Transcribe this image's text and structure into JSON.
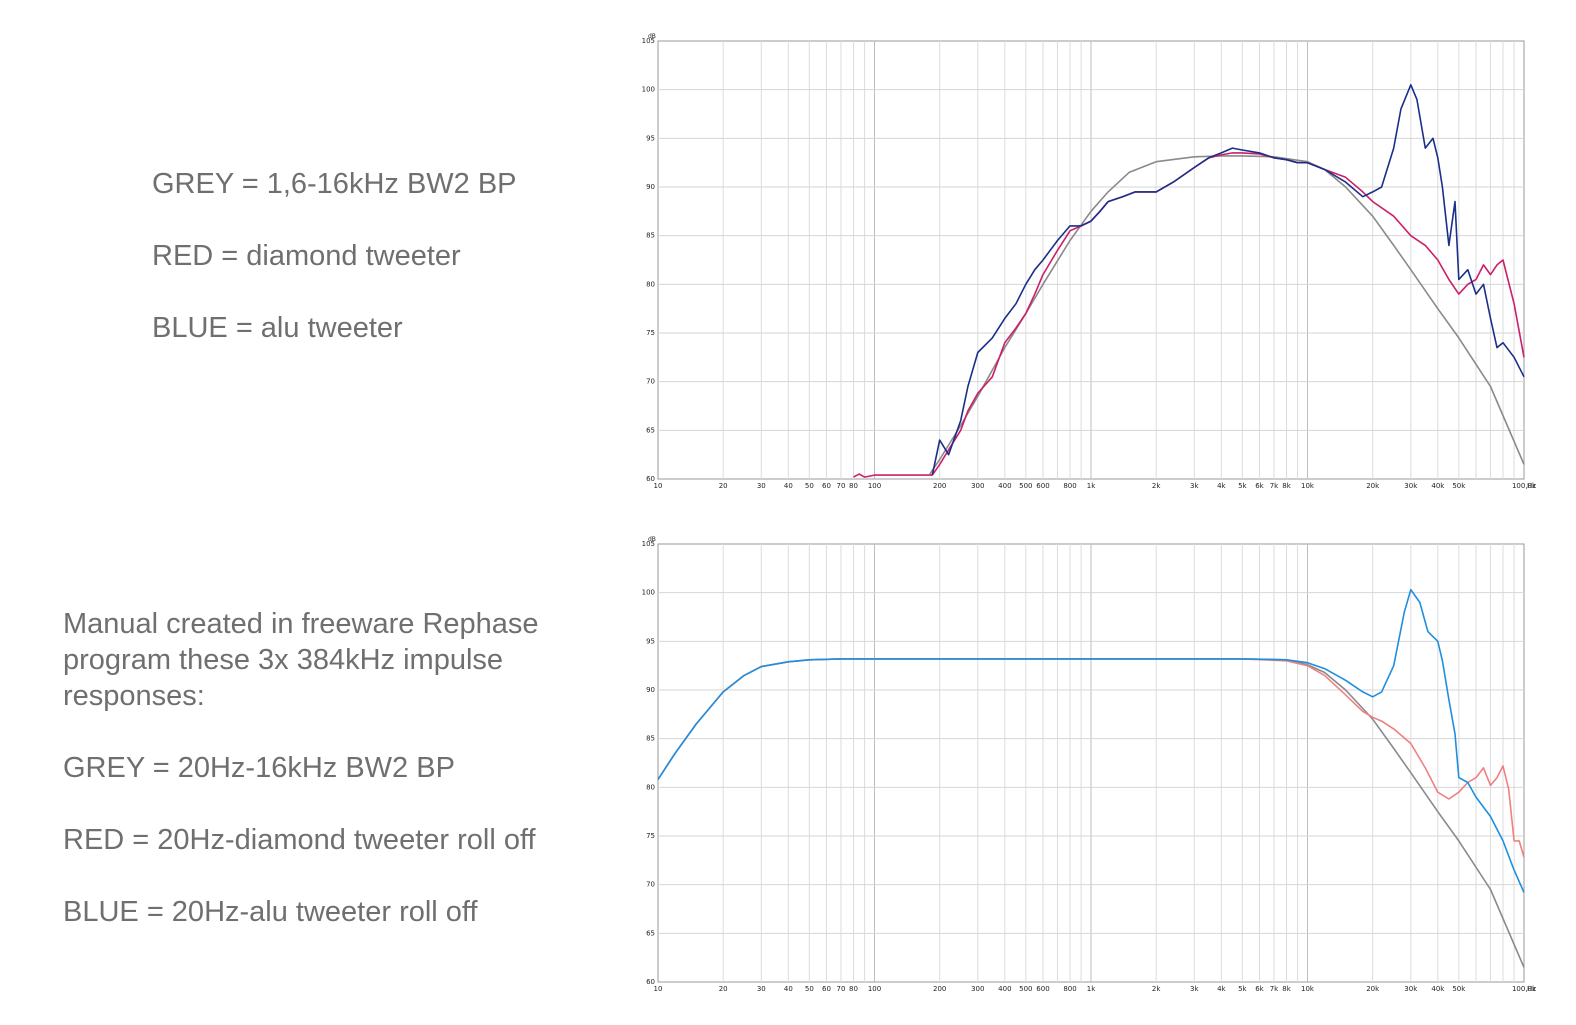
{
  "legend_top": {
    "grey": "GREY = 1,6-16kHz BW2 BP",
    "red": "RED = diamond tweeter",
    "blue": "BLUE = alu tweeter"
  },
  "legend_bottom": {
    "intro": "Manual created in freeware Rephase program these 3x 384kHz impulse responses:",
    "grey": "GREY = 20Hz-16kHz BW2 BP",
    "red": "RED = 20Hz-diamond tweeter roll off",
    "blue": "BLUE = 20Hz-alu tweeter roll off"
  },
  "chart_data": [
    {
      "type": "line",
      "x_scale": "log",
      "xlim": [
        10,
        100000
      ],
      "ylim": [
        60,
        105
      ],
      "y_unit": "dB",
      "x_unit": "Hz",
      "grid": true,
      "x_tick_labels": [
        "10",
        "20",
        "30",
        "40",
        "50",
        "60",
        "70",
        "80",
        "100",
        "200",
        "300",
        "400",
        "500",
        "600",
        "800",
        "1k",
        "2k",
        "3k",
        "4k",
        "5k",
        "6k",
        "7k",
        "8k",
        "10k",
        "20k",
        "30k",
        "40k",
        "50k",
        "100,0k"
      ],
      "y_tick_labels": [
        "60",
        "65",
        "70",
        "75",
        "80",
        "85",
        "90",
        "95",
        "100",
        "105"
      ],
      "series": [
        {
          "color": "#8a8a8a",
          "x": [
            180,
            200,
            250,
            300,
            400,
            500,
            600,
            800,
            1000,
            1200,
            1500,
            2000,
            3000,
            4000,
            5000,
            7000,
            10000,
            12000,
            15000,
            20000,
            25000,
            30000,
            40000,
            50000,
            70000,
            100000
          ],
          "y": [
            60.5,
            62,
            65.5,
            68.5,
            73.5,
            77,
            80,
            84.5,
            87.5,
            89.5,
            91.5,
            92.6,
            93.1,
            93.2,
            93.2,
            93.1,
            92.6,
            91.8,
            90,
            87,
            84,
            81.5,
            77.5,
            74.5,
            69.5,
            61.5
          ]
        },
        {
          "color": "#cc1f6a",
          "x": [
            80,
            85,
            90,
            100,
            110,
            150,
            185,
            200,
            220,
            250,
            270,
            300,
            350,
            400,
            450,
            500,
            550,
            600,
            700,
            800,
            900,
            1000,
            1100,
            1200,
            1400,
            1600,
            2000,
            2400,
            3000,
            3500,
            4000,
            4500,
            5000,
            6000,
            7000,
            8000,
            9000,
            10000,
            12000,
            15000,
            18000,
            20000,
            25000,
            30000,
            35000,
            40000,
            45000,
            50000,
            55000,
            60000,
            65000,
            70000,
            75000,
            80000,
            90000,
            100000
          ],
          "y": [
            60.2,
            60.5,
            60.2,
            60.4,
            60.4,
            60.4,
            60.4,
            61.5,
            63,
            65,
            67,
            68.8,
            70.5,
            74,
            75.5,
            77,
            79,
            81,
            83.5,
            85.5,
            86,
            86.5,
            87.5,
            88.5,
            89,
            89.5,
            89.5,
            90.5,
            92,
            93,
            93.3,
            93.5,
            93.5,
            93.4,
            93,
            92.8,
            92.5,
            92.5,
            91.8,
            91,
            89.5,
            88.5,
            87,
            85,
            84,
            82.5,
            80.5,
            79,
            80,
            80.5,
            82,
            81,
            82,
            82.5,
            78,
            72.5
          ]
        },
        {
          "color": "#1a2f8a",
          "x": [
            185,
            200,
            220,
            250,
            270,
            300,
            350,
            400,
            450,
            500,
            550,
            600,
            700,
            800,
            900,
            1000,
            1100,
            1200,
            1400,
            1600,
            2000,
            2400,
            3000,
            3500,
            4000,
            4500,
            5000,
            6000,
            7000,
            8000,
            9000,
            10000,
            12000,
            15000,
            18000,
            20000,
            22000,
            25000,
            27000,
            30000,
            32000,
            35000,
            38000,
            40000,
            42000,
            45000,
            48000,
            50000,
            55000,
            60000,
            65000,
            70000,
            75000,
            80000,
            90000,
            100000
          ],
          "y": [
            60.4,
            64,
            62.5,
            66,
            69.5,
            73,
            74.5,
            76.5,
            78,
            80,
            81.5,
            82.5,
            84.5,
            86,
            86,
            86.5,
            87.5,
            88.5,
            89,
            89.5,
            89.5,
            90.5,
            92,
            93,
            93.5,
            94,
            93.8,
            93.5,
            93,
            92.8,
            92.5,
            92.5,
            91.8,
            90.5,
            89,
            89.5,
            90,
            94,
            98,
            100.5,
            99,
            94,
            95,
            93,
            90,
            84,
            88.5,
            80.5,
            81.5,
            79,
            80,
            76.5,
            73.5,
            74,
            72.5,
            70.5
          ]
        }
      ]
    },
    {
      "type": "line",
      "x_scale": "log",
      "xlim": [
        10,
        100000
      ],
      "ylim": [
        60,
        105
      ],
      "y_unit": "dB",
      "x_unit": "Hz",
      "grid": true,
      "x_tick_labels": [
        "10",
        "20",
        "30",
        "40",
        "50",
        "60",
        "70",
        "80",
        "100",
        "200",
        "300",
        "400",
        "500",
        "600",
        "800",
        "1k",
        "2k",
        "3k",
        "4k",
        "5k",
        "6k",
        "7k",
        "8k",
        "10k",
        "20k",
        "30k",
        "40k",
        "50k",
        "100,0k"
      ],
      "y_tick_labels": [
        "60",
        "65",
        "70",
        "75",
        "80",
        "85",
        "90",
        "95",
        "100",
        "105"
      ],
      "series": [
        {
          "color": "#8a8a8a",
          "x": [
            10,
            12,
            15,
            20,
            25,
            30,
            40,
            50,
            70,
            100,
            1000,
            5000,
            8000,
            10000,
            12000,
            15000,
            20000,
            25000,
            30000,
            40000,
            50000,
            70000,
            100000
          ],
          "y": [
            80.8,
            83.5,
            86.5,
            89.8,
            91.5,
            92.4,
            92.9,
            93.1,
            93.2,
            93.2,
            93.2,
            93.2,
            93.1,
            92.6,
            91.8,
            90,
            87,
            84,
            81.5,
            77.5,
            74.5,
            69.5,
            61.5
          ]
        },
        {
          "color": "#f08080",
          "x": [
            10,
            12,
            15,
            20,
            25,
            30,
            40,
            50,
            70,
            100,
            1000,
            5000,
            8000,
            10000,
            12000,
            15000,
            18000,
            20000,
            22000,
            25000,
            30000,
            35000,
            40000,
            45000,
            50000,
            55000,
            60000,
            65000,
            70000,
            75000,
            80000,
            85000,
            90000,
            95000,
            100000
          ],
          "y": [
            80.8,
            83.5,
            86.5,
            89.8,
            91.5,
            92.4,
            92.9,
            93.1,
            93.2,
            93.2,
            93.2,
            93.2,
            93,
            92.5,
            91.5,
            89.5,
            87.8,
            87.2,
            86.8,
            86,
            84.5,
            82,
            79.5,
            78.8,
            79.5,
            80.5,
            81,
            82,
            80.2,
            81,
            82.2,
            79.8,
            74.5,
            74.5,
            72.8
          ]
        },
        {
          "color": "#1e8fe0",
          "x": [
            10,
            12,
            15,
            20,
            25,
            30,
            40,
            50,
            70,
            100,
            1000,
            5000,
            8000,
            10000,
            12000,
            15000,
            18000,
            20000,
            22000,
            25000,
            28000,
            30000,
            33000,
            36000,
            40000,
            42000,
            45000,
            48000,
            50000,
            55000,
            60000,
            70000,
            80000,
            90000,
            100000
          ],
          "y": [
            80.8,
            83.5,
            86.5,
            89.8,
            91.5,
            92.4,
            92.9,
            93.1,
            93.2,
            93.2,
            93.2,
            93.2,
            93.1,
            92.8,
            92.2,
            91,
            89.8,
            89.3,
            89.8,
            92.5,
            98,
            100.3,
            99,
            96,
            95,
            93,
            89,
            85.5,
            81,
            80.5,
            79,
            77,
            74.5,
            71.5,
            69.2
          ]
        }
      ]
    }
  ]
}
